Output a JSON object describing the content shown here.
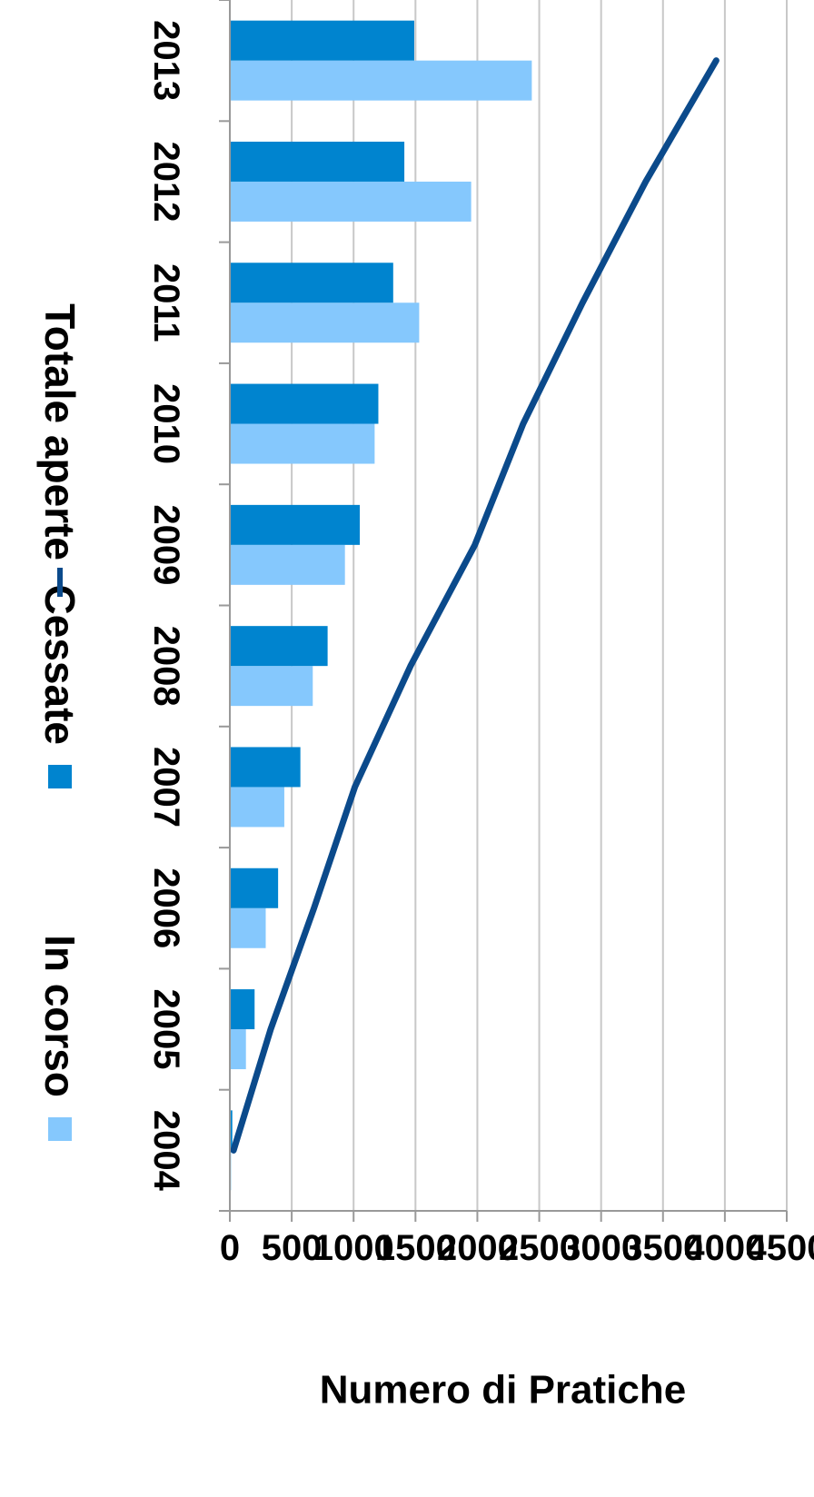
{
  "chart_data": {
    "type": "bar",
    "orientation": "rotated-90-clockwise",
    "ylabel": "Numero di Pratiche",
    "xlabel": "",
    "ylim": [
      0,
      4500
    ],
    "yticks": [
      0,
      500,
      1000,
      1500,
      2000,
      2500,
      3000,
      3500,
      4000,
      4500
    ],
    "categories": [
      "2004",
      "2005",
      "2006",
      "2007",
      "2008",
      "2009",
      "2010",
      "2011",
      "2012",
      "2013"
    ],
    "grid": true,
    "legend_position": "bottom",
    "series": [
      {
        "name": "In corso",
        "type": "bar",
        "color": "#85c8fd",
        "values": [
          10,
          130,
          290,
          440,
          670,
          930,
          1170,
          1530,
          1950,
          2440
        ]
      },
      {
        "name": "Cessate",
        "type": "bar",
        "color": "#0084cf",
        "values": [
          20,
          200,
          390,
          570,
          790,
          1050,
          1200,
          1320,
          1410,
          1490
        ]
      },
      {
        "name": "Totale aperte",
        "type": "line",
        "color": "#0b4a8b",
        "values": [
          30,
          330,
          680,
          1010,
          1460,
          1980,
          2370,
          2850,
          3360,
          3930
        ]
      }
    ]
  }
}
